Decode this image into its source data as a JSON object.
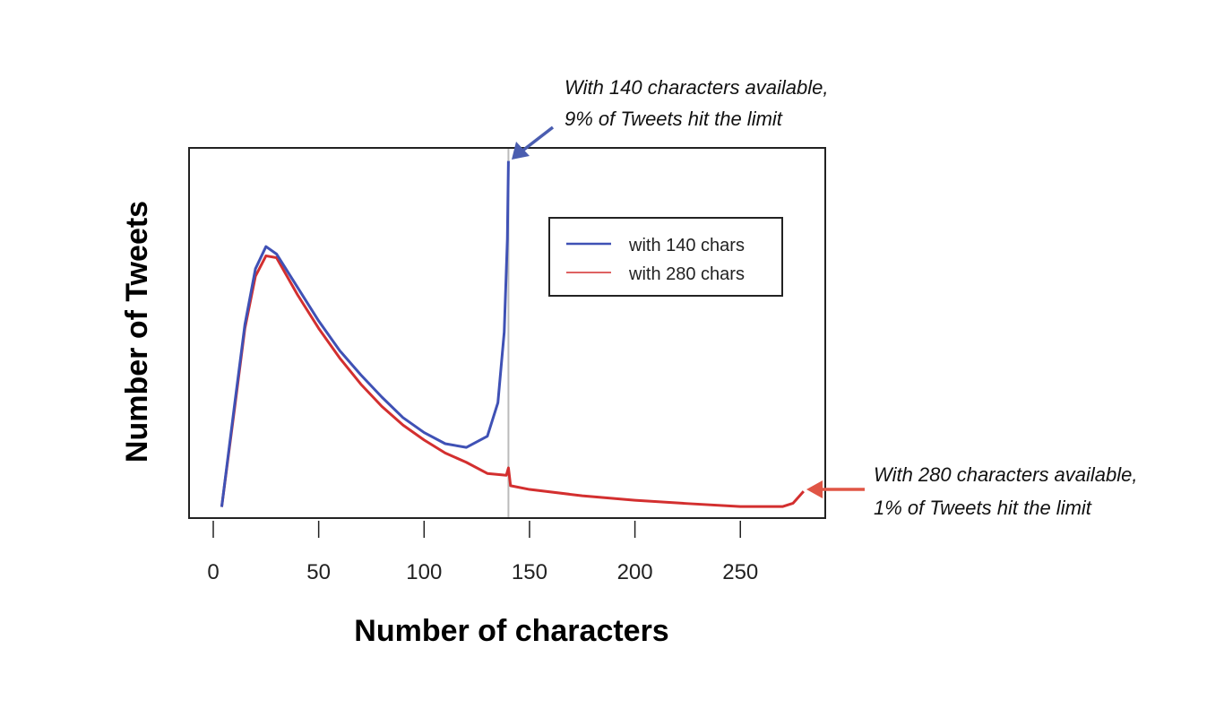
{
  "chart_data": {
    "type": "line",
    "title": "",
    "xlabel": "Number of characters",
    "ylabel": "Number of Tweets",
    "xlim": [
      -11,
      291
    ],
    "ylim": [
      0,
      100
    ],
    "x_ticks": [
      0,
      50,
      100,
      150,
      200,
      250
    ],
    "y_ticks": [],
    "grid": false,
    "legend": {
      "position": "top-right",
      "entries": [
        "with 140 chars",
        "with 280 chars"
      ]
    },
    "reference_line_x": 140,
    "series": [
      {
        "name": "with 140 chars",
        "color": "#3f51b5",
        "x": [
          4,
          10,
          15,
          20,
          25,
          30,
          40,
          50,
          60,
          70,
          80,
          90,
          100,
          110,
          120,
          130,
          135,
          138,
          139.5,
          140
        ],
        "y": [
          3,
          30,
          52,
          67,
          73,
          71,
          62,
          53,
          45,
          38.5,
          32.5,
          27,
          23,
          20,
          19,
          22,
          31,
          50,
          75,
          96
        ]
      },
      {
        "name": "with 280 chars",
        "color": "#d32f2f",
        "x": [
          4,
          10,
          15,
          20,
          25,
          30,
          40,
          50,
          60,
          70,
          80,
          90,
          100,
          110,
          120,
          130,
          139,
          140,
          141,
          150,
          175,
          200,
          225,
          250,
          270,
          275,
          280
        ],
        "y": [
          3,
          29,
          51,
          65,
          70.5,
          70,
          60,
          51,
          43,
          36,
          30,
          25,
          21,
          17.5,
          15,
          12,
          11.5,
          13.5,
          8.7,
          7.7,
          6,
          4.8,
          3.9,
          3.1,
          3.1,
          4,
          7.2
        ]
      }
    ],
    "annotations": [
      {
        "lines": [
          "With 140 characters available,",
          "9% of Tweets hit the limit"
        ],
        "color": "#4a5db0"
      },
      {
        "lines": [
          "With 280 characters available,",
          "1% of Tweets hit the limit"
        ],
        "color": "#e05545"
      }
    ]
  }
}
